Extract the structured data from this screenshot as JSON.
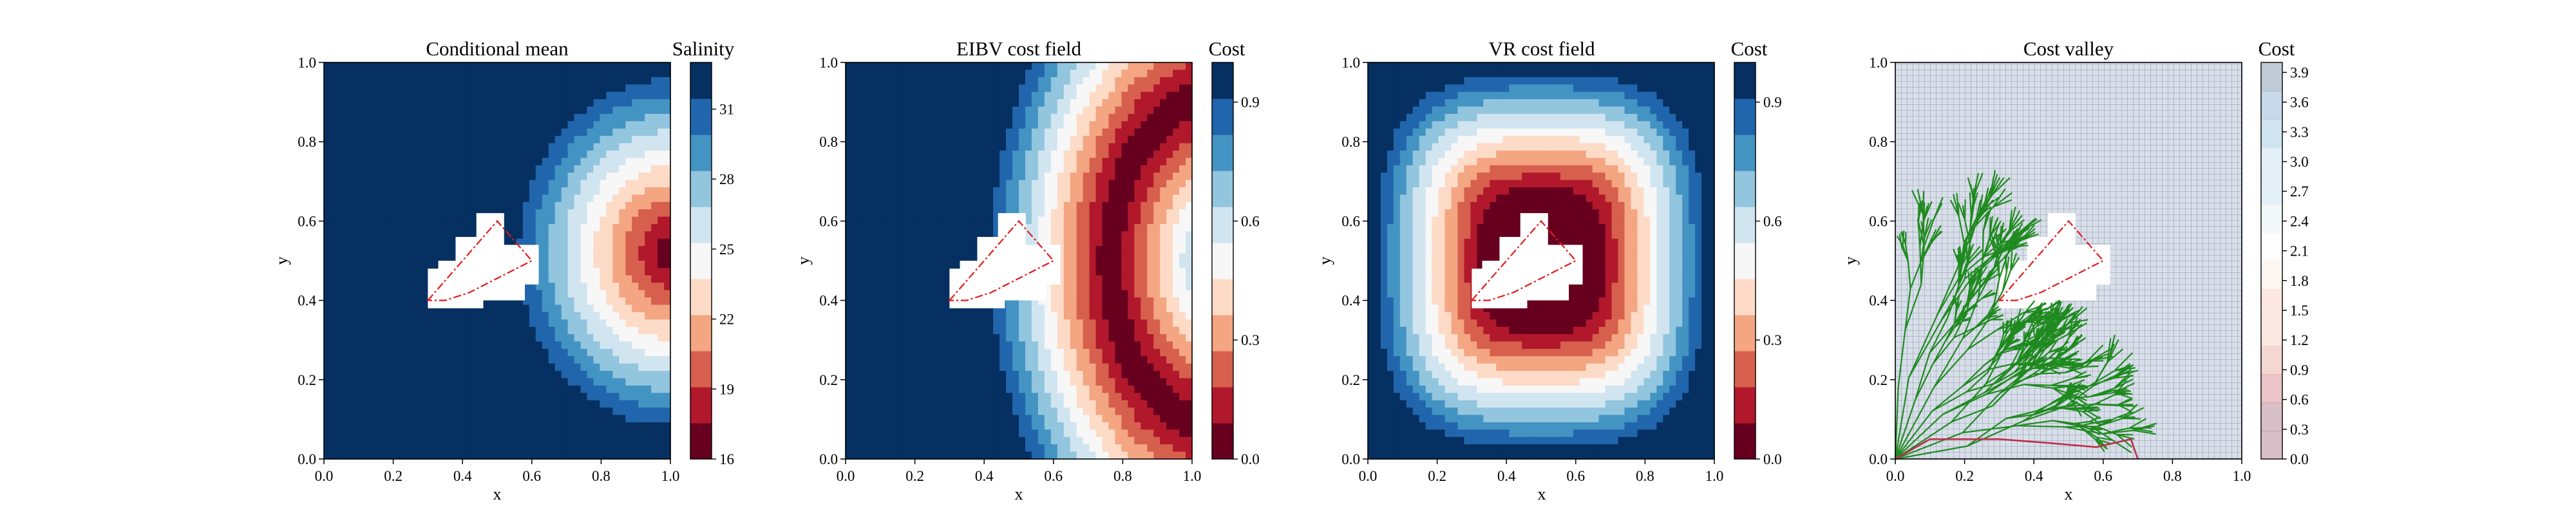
{
  "chart_data": [
    {
      "type": "heatmap",
      "title": "Conditional mean",
      "xlabel": "x",
      "ylabel": "y",
      "xlim": [
        0,
        1
      ],
      "ylim": [
        0,
        1
      ],
      "xticks": [
        "0.0",
        "0.2",
        "0.4",
        "0.6",
        "0.8",
        "1.0"
      ],
      "yticks": [
        "0.0",
        "0.2",
        "0.4",
        "0.6",
        "0.8",
        "1.0"
      ],
      "colorbar": {
        "label": "Salinity",
        "cmap": "RdBu",
        "range": [
          16,
          33
        ],
        "ticks": [
          "16",
          "19",
          "22",
          "25",
          "28",
          "31"
        ],
        "tick_values": [
          16,
          19,
          22,
          25,
          28,
          31
        ]
      },
      "field": {
        "description_source": "radial plume centered at right edge",
        "center": [
          1.0,
          0.52
        ],
        "values_by_distance": [
          [
            0.0,
            16
          ],
          [
            0.1,
            18.5
          ],
          [
            0.2,
            21
          ],
          [
            0.3,
            24.5
          ],
          [
            0.4,
            28
          ],
          [
            0.5,
            33
          ]
        ]
      },
      "obstacle_polygon": [
        [
          0.3,
          0.4
        ],
        [
          0.5,
          0.6
        ],
        [
          0.6,
          0.5
        ],
        [
          0.42,
          0.42
        ],
        [
          0.35,
          0.4
        ]
      ]
    },
    {
      "type": "heatmap",
      "title": "EIBV cost field",
      "xlabel": "x",
      "ylabel": "y",
      "xlim": [
        0,
        1
      ],
      "ylim": [
        0,
        1
      ],
      "xticks": [
        "0.0",
        "0.2",
        "0.4",
        "0.6",
        "0.8",
        "1.0"
      ],
      "yticks": [
        "0.0",
        "0.2",
        "0.4",
        "0.6",
        "0.8",
        "1.0"
      ],
      "colorbar": {
        "label": "Cost",
        "cmap": "RdBu",
        "range": [
          0,
          1
        ],
        "ticks": [
          "0.0",
          "0.3",
          "0.6",
          "0.9"
        ],
        "tick_values": [
          0,
          0.3,
          0.6,
          0.9
        ]
      },
      "field": {
        "shape": "crescent low-cost band around plume front",
        "ring_center": [
          1.08,
          0.5
        ],
        "ring_radius": 0.3,
        "minimum_region": [
          [
            0.7,
            0.3
          ],
          [
            0.85,
            0.7
          ]
        ]
      },
      "obstacle_polygon": [
        [
          0.3,
          0.4
        ],
        [
          0.5,
          0.6
        ],
        [
          0.6,
          0.5
        ],
        [
          0.42,
          0.42
        ],
        [
          0.35,
          0.4
        ]
      ]
    },
    {
      "type": "heatmap",
      "title": "VR cost field",
      "xlabel": "x",
      "ylabel": "y",
      "xlim": [
        0,
        1
      ],
      "ylim": [
        0,
        1
      ],
      "xticks": [
        "0.0",
        "0.2",
        "0.4",
        "0.6",
        "0.8",
        "1.0"
      ],
      "yticks": [
        "0.0",
        "0.2",
        "0.4",
        "0.6",
        "0.8",
        "1.0"
      ],
      "colorbar": {
        "label": "Cost",
        "cmap": "RdBu",
        "range": [
          0,
          1
        ],
        "ticks": [
          "0.0",
          "0.3",
          "0.6",
          "0.9"
        ],
        "tick_values": [
          0,
          0.3,
          0.6,
          0.9
        ]
      },
      "field": {
        "shape": "rounded-square concentric rings, minimum at center",
        "center": [
          0.5,
          0.5
        ]
      },
      "obstacle_polygon": [
        [
          0.3,
          0.4
        ],
        [
          0.5,
          0.6
        ],
        [
          0.6,
          0.5
        ],
        [
          0.42,
          0.42
        ],
        [
          0.35,
          0.4
        ]
      ]
    },
    {
      "type": "heatmap",
      "title": "Cost valley",
      "xlabel": "x",
      "ylabel": "y",
      "xlim": [
        0,
        1
      ],
      "ylim": [
        0,
        1
      ],
      "xticks": [
        "0.0",
        "0.2",
        "0.4",
        "0.6",
        "0.8",
        "1.0"
      ],
      "yticks": [
        "0.0",
        "0.2",
        "0.4",
        "0.6",
        "0.8",
        "1.0"
      ],
      "colorbar": {
        "label": "Cost",
        "cmap": "RdBu",
        "alpha": 0.25,
        "range": [
          0,
          4
        ],
        "ticks": [
          "0.0",
          "0.3",
          "0.6",
          "0.9",
          "1.2",
          "1.5",
          "1.8",
          "2.1",
          "2.4",
          "2.7",
          "3.0",
          "3.3",
          "3.6",
          "3.9"
        ],
        "tick_values": [
          0,
          0.3,
          0.6,
          0.9,
          1.2,
          1.5,
          1.8,
          2.1,
          2.4,
          2.7,
          3.0,
          3.3,
          3.6,
          3.9
        ]
      },
      "tree_color": "#1f8a1f",
      "path_colors": [
        "#d62728",
        "#7b3fa0"
      ],
      "path": [
        [
          0.0,
          0.0
        ],
        [
          0.1,
          0.05
        ],
        [
          0.3,
          0.05
        ],
        [
          0.45,
          0.04
        ],
        [
          0.58,
          0.03
        ],
        [
          0.68,
          0.05
        ],
        [
          0.7,
          0.0
        ]
      ],
      "obstacle_polygon": [
        [
          0.3,
          0.4
        ],
        [
          0.5,
          0.6
        ],
        [
          0.6,
          0.5
        ],
        [
          0.42,
          0.42
        ],
        [
          0.35,
          0.4
        ]
      ]
    }
  ]
}
